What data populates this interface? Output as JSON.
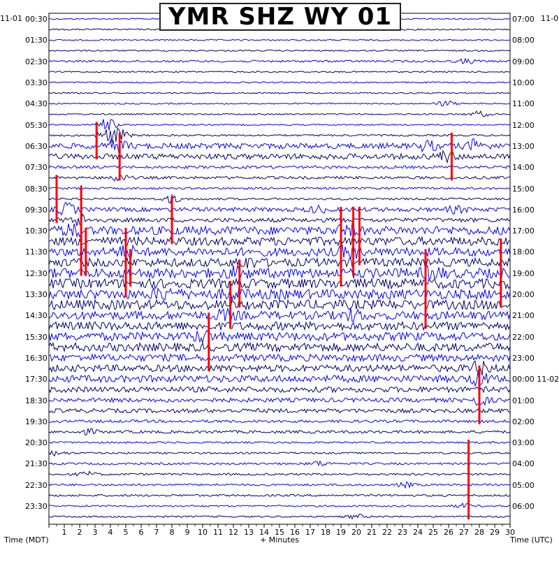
{
  "title": "YMR SHZ WY 01",
  "left_date": "11-01",
  "right_date": "11-0",
  "right_date_next": "11-02",
  "x_label": "+ Minutes",
  "left_axis_label": "Time (MDT)",
  "right_axis_label": "Time (UTC)",
  "colors": {
    "trace_a": "#0000ff",
    "trace_b": "#00006b",
    "clip": "#ff0000",
    "grid": "#cccccc",
    "background": "#ffffff"
  },
  "chart_data": {
    "type": "line",
    "title": "YMR SHZ WY 01",
    "xlabel": "+ Minutes",
    "xlim": [
      0,
      30
    ],
    "x_ticks": [
      1,
      2,
      3,
      4,
      5,
      6,
      7,
      8,
      9,
      10,
      11,
      12,
      13,
      14,
      15,
      16,
      17,
      18,
      19,
      20,
      21,
      22,
      23,
      24,
      25,
      26,
      27,
      28,
      29,
      30
    ],
    "rows_per_hour": 2,
    "row_count": 48,
    "left_ticks": [
      "00:30",
      "01:30",
      "02:30",
      "03:30",
      "04:30",
      "05:30",
      "06:30",
      "07:30",
      "08:30",
      "09:30",
      "10:30",
      "11:30",
      "12:30",
      "13:30",
      "14:30",
      "15:30",
      "16:30",
      "17:30",
      "18:30",
      "19:30",
      "20:30",
      "21:30",
      "22:30",
      "23:30"
    ],
    "right_ticks": [
      "07:00",
      "08:00",
      "09:00",
      "10:00",
      "11:00",
      "12:00",
      "13:00",
      "14:00",
      "15:00",
      "16:00",
      "17:00",
      "18:00",
      "19:00",
      "20:00",
      "21:00",
      "22:00",
      "23:00",
      "00:00 11-02",
      "01:00",
      "02:00",
      "03:00",
      "04:00",
      "05:00",
      "06:00"
    ],
    "row_amplitude": [
      1,
      1,
      1,
      1,
      1.5,
      1,
      1,
      1,
      1,
      1,
      1,
      1.3,
      4,
      4,
      2,
      2,
      1.5,
      1.5,
      3,
      3,
      6,
      6,
      6,
      6,
      7,
      7,
      7,
      7,
      6,
      6,
      6,
      6,
      5,
      5,
      5,
      4,
      3,
      3,
      2,
      2,
      1.3,
      1.3,
      1.5,
      1.5,
      1.5,
      1.5,
      1.2,
      1.2
    ],
    "events": [
      {
        "row": 4,
        "minute": 27.2,
        "amp": 3
      },
      {
        "row": 8,
        "minute": 25.8,
        "amp": 4
      },
      {
        "row": 9,
        "minute": 28,
        "amp": 4
      },
      {
        "row": 10,
        "minute": 3.8,
        "amp": 9
      },
      {
        "row": 11,
        "minute": 3.8,
        "amp": 9
      },
      {
        "row": 11,
        "minute": 4.6,
        "amp": 8
      },
      {
        "row": 12,
        "minute": 4.5,
        "amp": 8
      },
      {
        "row": 12,
        "minute": 27.8,
        "amp": 8
      },
      {
        "row": 12,
        "minute": 24.6,
        "amp": 6
      },
      {
        "row": 13,
        "minute": 25.8,
        "amp": 6
      },
      {
        "row": 15,
        "minute": 4.5,
        "amp": 5
      },
      {
        "row": 17,
        "minute": 8,
        "amp": 5
      },
      {
        "row": 18,
        "minute": 17.5,
        "amp": 4
      },
      {
        "row": 18,
        "minute": 26.5,
        "amp": 4
      },
      {
        "row": 18,
        "minute": 1.2,
        "amp": 8
      },
      {
        "row": 19,
        "minute": 2,
        "amp": 8
      },
      {
        "row": 20,
        "minute": 1.5,
        "amp": 8
      },
      {
        "row": 20,
        "minute": 19.5,
        "amp": 8
      },
      {
        "row": 22,
        "minute": 5,
        "amp": 8
      },
      {
        "row": 22,
        "minute": 19.5,
        "amp": 8
      },
      {
        "row": 23,
        "minute": 12.8,
        "amp": 6
      },
      {
        "row": 24,
        "minute": 12.3,
        "amp": 8
      },
      {
        "row": 24,
        "minute": 25,
        "amp": 7
      },
      {
        "row": 26,
        "minute": 7.5,
        "amp": 7
      },
      {
        "row": 26,
        "minute": 12,
        "amp": 6
      },
      {
        "row": 28,
        "minute": 11.5,
        "amp": 6
      },
      {
        "row": 28,
        "minute": 19.8,
        "amp": 6
      },
      {
        "row": 30,
        "minute": 10,
        "amp": 6
      },
      {
        "row": 33,
        "minute": 28,
        "amp": 8
      },
      {
        "row": 34,
        "minute": 28,
        "amp": 8
      },
      {
        "row": 36,
        "minute": 28,
        "amp": 6
      },
      {
        "row": 39,
        "minute": 2.6,
        "amp": 3
      },
      {
        "row": 41,
        "minute": 0.5,
        "amp": 3
      },
      {
        "row": 42,
        "minute": 17.6,
        "amp": 3
      },
      {
        "row": 43,
        "minute": 2.5,
        "amp": 3
      },
      {
        "row": 44,
        "minute": 23.2,
        "amp": 3
      },
      {
        "row": 46,
        "minute": 27,
        "amp": 3
      },
      {
        "row": 47,
        "minute": 20,
        "amp": 3
      }
    ],
    "clipped_segments": [
      {
        "minute": 3.1,
        "row_start": 10,
        "row_end": 13
      },
      {
        "minute": 4.6,
        "row_start": 11,
        "row_end": 15
      },
      {
        "minute": 0.5,
        "row_start": 15,
        "row_end": 19
      },
      {
        "minute": 2.1,
        "row_start": 16,
        "row_end": 24
      },
      {
        "minute": 2.4,
        "row_start": 20,
        "row_end": 24
      },
      {
        "minute": 5,
        "row_start": 20,
        "row_end": 26
      },
      {
        "minute": 5.3,
        "row_start": 22,
        "row_end": 25
      },
      {
        "minute": 8,
        "row_start": 17,
        "row_end": 21
      },
      {
        "minute": 10.4,
        "row_start": 28,
        "row_end": 33
      },
      {
        "minute": 11.8,
        "row_start": 25,
        "row_end": 29
      },
      {
        "minute": 12.4,
        "row_start": 23,
        "row_end": 27
      },
      {
        "minute": 19,
        "row_start": 18,
        "row_end": 25
      },
      {
        "minute": 19.8,
        "row_start": 18,
        "row_end": 24
      },
      {
        "minute": 20.2,
        "row_start": 18,
        "row_end": 23
      },
      {
        "minute": 24.5,
        "row_start": 22,
        "row_end": 29
      },
      {
        "minute": 29.4,
        "row_start": 21,
        "row_end": 27
      },
      {
        "minute": 28,
        "row_start": 33,
        "row_end": 38
      },
      {
        "minute": 26.2,
        "row_start": 11,
        "row_end": 15
      },
      {
        "minute": 27.3,
        "row_start": 40,
        "row_end": 47
      }
    ]
  }
}
